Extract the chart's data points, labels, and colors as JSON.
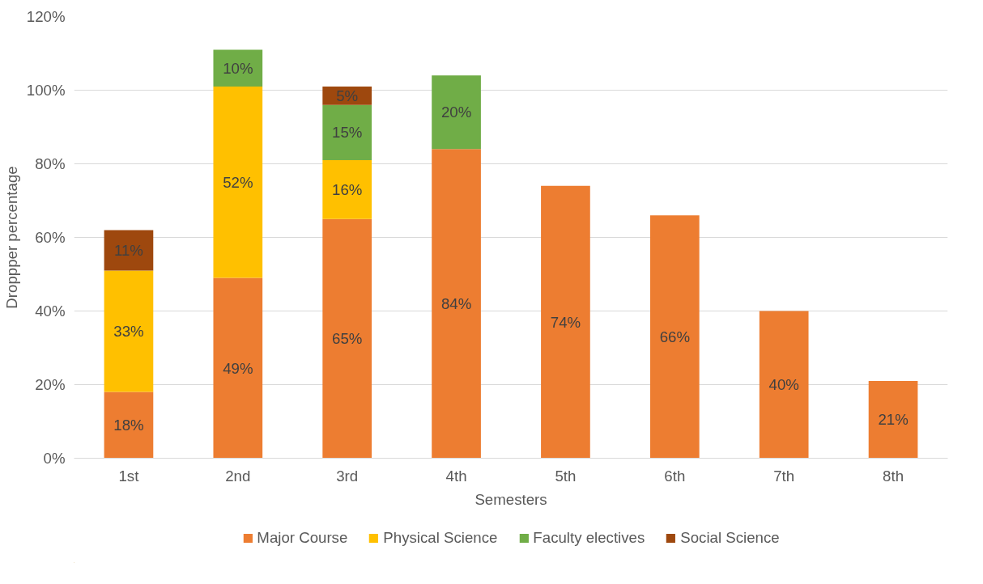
{
  "chart_data": {
    "type": "bar",
    "stacked": true,
    "xlabel": "Semesters",
    "ylabel": "Droppper percentage",
    "categories": [
      "1st",
      "2nd",
      "3rd",
      "4th",
      "5th",
      "6th",
      "7th",
      "8th"
    ],
    "series": [
      {
        "name": "Major Course",
        "color": "#ed7d31",
        "values": [
          18,
          49,
          65,
          84,
          74,
          66,
          40,
          21
        ],
        "value_labels": [
          "18%",
          "49%",
          "65%",
          "84%",
          "74%",
          "66%",
          "40%",
          "21%"
        ]
      },
      {
        "name": "Physical Science",
        "color": "#ffc000",
        "values": [
          33,
          52,
          16,
          null,
          null,
          null,
          null,
          null
        ],
        "value_labels": [
          "33%",
          "52%",
          "16%",
          null,
          null,
          null,
          null,
          null
        ]
      },
      {
        "name": "Faculty electives",
        "color": "#70ad47",
        "values": [
          null,
          10,
          15,
          20,
          null,
          null,
          null,
          null
        ],
        "value_labels": [
          null,
          "10%",
          "15%",
          "20%",
          null,
          null,
          null,
          null
        ]
      },
      {
        "name": "Social Science",
        "color": "#9e480e",
        "values": [
          11,
          null,
          5,
          null,
          null,
          null,
          null,
          null
        ],
        "value_labels": [
          "11%",
          null,
          "5%",
          null,
          null,
          null,
          null,
          null
        ]
      }
    ],
    "ylim": [
      0,
      120
    ],
    "yticks": [
      {
        "value": 0,
        "label": "0%"
      },
      {
        "value": 20,
        "label": "20%"
      },
      {
        "value": 40,
        "label": "40%"
      },
      {
        "value": 60,
        "label": "60%"
      },
      {
        "value": 80,
        "label": "80%"
      },
      {
        "value": 100,
        "label": "100%"
      },
      {
        "value": 120,
        "label": "120%"
      }
    ],
    "grid": "y",
    "legend": "bottom"
  }
}
